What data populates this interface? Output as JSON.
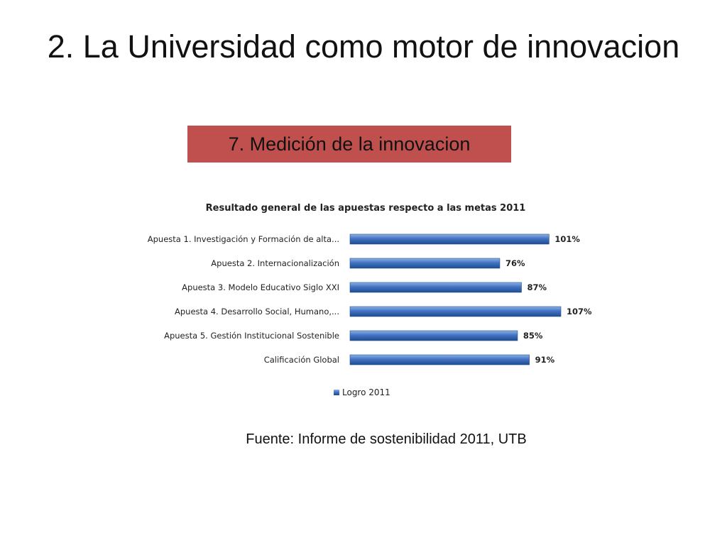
{
  "slide": {
    "title": "2. La Universidad como motor de innovacion",
    "section_label": "7. Medición de la innovacion",
    "source": "Fuente: Informe de sostenibilidad 2011, UTB"
  },
  "colors": {
    "badge": "#c0504d",
    "bar": "#4472c4",
    "bar_dark": "#1f4e8c"
  },
  "chart_data": {
    "type": "bar",
    "orientation": "horizontal",
    "title": "Resultado general de las apuestas respecto a las metas 2011",
    "categories": [
      "Apuesta 1. Investigación y Formación de alta...",
      "Apuesta 2. Internacionalización",
      "Apuesta 3. Modelo Educativo Siglo XXI",
      "Apuesta 4. Desarrollo Social, Humano,...",
      "Apuesta 5. Gestión Institucional Sostenible",
      "Calificación Global"
    ],
    "series": [
      {
        "name": "Logro 2011",
        "values": [
          101,
          76,
          87,
          107,
          85,
          91
        ]
      }
    ],
    "value_labels": [
      "101%",
      "76%",
      "87%",
      "107%",
      "85%",
      "91%"
    ],
    "xlim": [
      0,
      107
    ],
    "unit": "%",
    "grid": false,
    "legend": "bottom"
  }
}
